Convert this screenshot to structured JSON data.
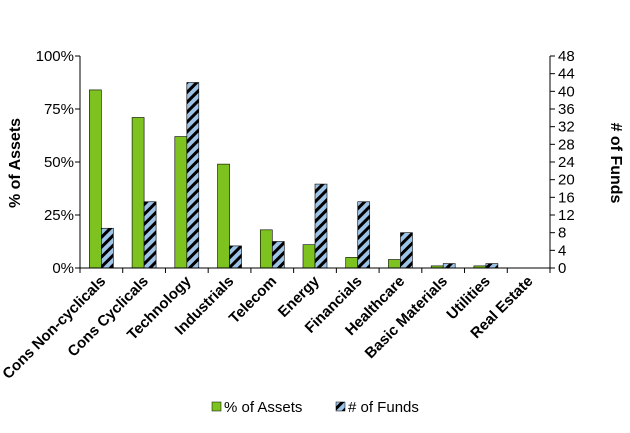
{
  "chart_data": {
    "type": "bar",
    "title": "",
    "categories": [
      "Cons Non-cyclicals",
      "Cons Cyclicals",
      "Technology",
      "Industrials",
      "Telecom",
      "Energy",
      "Financials",
      "Healthcare",
      "Basic Materials",
      "Utilities",
      "Real Estate"
    ],
    "series": [
      {
        "name": "% of Assets",
        "axis": "left",
        "color": "#7dc21e",
        "values": [
          84,
          71,
          62,
          49,
          18,
          11,
          5,
          4,
          1,
          1,
          0
        ]
      },
      {
        "name": "# of Funds",
        "axis": "right",
        "color": "#9dc3e6",
        "pattern": "diagonal-stripes-black",
        "values": [
          9,
          15,
          42,
          5,
          6,
          19,
          15,
          8,
          1,
          1,
          0
        ]
      }
    ],
    "y_left": {
      "label": "% of Assets",
      "range": [
        0,
        100
      ],
      "ticks": [
        0,
        25,
        50,
        75,
        100
      ],
      "tick_labels": [
        "0%",
        "25%",
        "50%",
        "75%",
        "100%"
      ]
    },
    "y_right": {
      "label": "# of Funds",
      "range": [
        0,
        48
      ],
      "ticks": [
        0,
        4,
        8,
        12,
        16,
        20,
        24,
        28,
        32,
        36,
        40,
        44,
        48
      ],
      "tick_labels": [
        "0",
        "4",
        "8",
        "12",
        "16",
        "20",
        "24",
        "28",
        "32",
        "36",
        "40",
        "44",
        "48"
      ]
    },
    "grid": false,
    "legend": {
      "position": "bottom",
      "entries": [
        "% of Assets",
        "# of Funds"
      ]
    }
  }
}
